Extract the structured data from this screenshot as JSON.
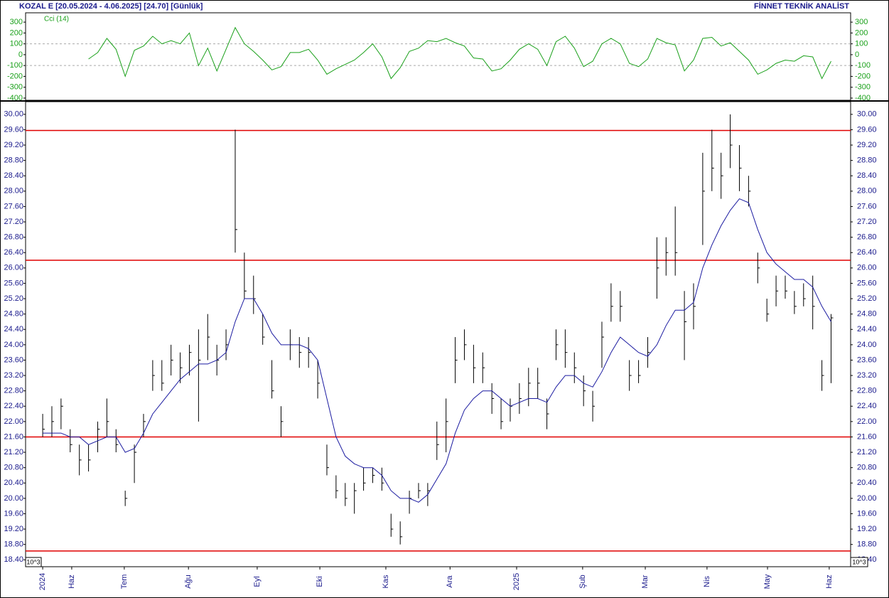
{
  "header": {
    "title": "KOZAL E  [20.05.2024 - 4.06.2025]  [24.70]  [Günlük]",
    "brand": "FİNNET TEKNİK ANALİST"
  },
  "chart_data": [
    {
      "type": "line",
      "title": "Cci (14)",
      "color": "#1aa01a",
      "x": [
        0,
        3,
        6,
        9,
        12,
        15,
        18,
        21,
        24,
        27,
        30,
        33,
        36,
        39,
        42,
        45,
        48,
        51,
        54,
        57,
        60,
        63,
        66,
        69,
        72,
        75,
        78,
        81,
        84,
        87,
        90,
        93,
        96,
        99,
        102,
        105,
        108,
        111,
        114,
        117,
        120,
        123,
        126,
        129,
        132,
        135,
        138,
        141,
        144,
        147,
        150,
        153,
        156,
        159,
        162,
        165,
        168,
        171,
        174,
        177,
        180,
        183,
        186,
        189,
        192,
        195,
        198,
        201,
        204,
        207,
        210,
        213,
        216,
        219,
        222,
        225,
        228,
        231,
        234,
        237,
        240,
        243,
        246,
        249,
        252,
        255,
        258
      ],
      "values": [
        null,
        null,
        null,
        null,
        null,
        -40,
        20,
        150,
        50,
        -200,
        40,
        80,
        170,
        100,
        130,
        100,
        200,
        -100,
        60,
        -150,
        50,
        250,
        100,
        30,
        -50,
        -140,
        -110,
        20,
        20,
        50,
        -50,
        -180,
        -130,
        -90,
        -50,
        20,
        100,
        -20,
        -220,
        -120,
        30,
        60,
        130,
        120,
        150,
        110,
        80,
        -30,
        -40,
        -150,
        -130,
        -50,
        50,
        100,
        50,
        -100,
        120,
        170,
        60,
        -110,
        -60,
        100,
        150,
        100,
        -80,
        -110,
        -40,
        150,
        110,
        90,
        -150,
        -50,
        150,
        160,
        80,
        110,
        30,
        -50,
        -180,
        -140,
        -80,
        -50,
        -60,
        -10,
        -20,
        -220,
        -60
      ],
      "levels": [
        100,
        -100
      ],
      "xlim": [
        -5.6,
        264.4
      ],
      "ylim": [
        -420,
        386
      ],
      "yticks": [
        300,
        200,
        100,
        0,
        -100,
        -200,
        -300,
        -400
      ]
    },
    {
      "type": "ohlc",
      "color": "#000000",
      "axis_note": "10^3",
      "x": [
        0,
        3,
        6,
        9,
        12,
        15,
        18,
        21,
        24,
        27,
        30,
        33,
        36,
        39,
        42,
        45,
        48,
        51,
        54,
        57,
        60,
        63,
        66,
        69,
        72,
        75,
        78,
        81,
        84,
        87,
        90,
        93,
        96,
        99,
        102,
        105,
        108,
        111,
        114,
        117,
        120,
        123,
        126,
        129,
        132,
        135,
        138,
        141,
        144,
        147,
        150,
        153,
        156,
        159,
        162,
        165,
        168,
        171,
        174,
        177,
        180,
        183,
        186,
        189,
        192,
        195,
        198,
        201,
        204,
        207,
        210,
        213,
        216,
        219,
        222,
        225,
        228,
        231,
        234,
        237,
        240,
        243,
        246,
        249,
        252,
        255,
        258
      ],
      "high": [
        22.2,
        22.4,
        22.6,
        21.8,
        21.4,
        21.4,
        22.0,
        22.6,
        21.8,
        20.2,
        21.4,
        22.2,
        23.6,
        23.6,
        24.0,
        23.8,
        24.0,
        24.4,
        24.8,
        24.0,
        24.4,
        29.6,
        26.4,
        25.8,
        24.8,
        23.6,
        22.4,
        24.4,
        24.2,
        24.2,
        23.6,
        21.4,
        20.6,
        20.4,
        20.4,
        20.8,
        20.8,
        20.8,
        19.6,
        19.4,
        20.2,
        20.4,
        20.4,
        22.0,
        22.6,
        24.2,
        24.4,
        24.0,
        23.8,
        23.0,
        22.6,
        22.6,
        23.0,
        23.4,
        23.4,
        22.6,
        24.4,
        24.4,
        23.8,
        23.2,
        22.8,
        24.6,
        25.6,
        25.4,
        23.6,
        23.6,
        24.2,
        26.8,
        26.8,
        27.6,
        25.4,
        25.6,
        29.0,
        29.6,
        29.0,
        30.0,
        29.2,
        28.4,
        26.4,
        25.2,
        25.8,
        25.8,
        25.4,
        25.6,
        25.8,
        23.6,
        24.8
      ],
      "low": [
        21.6,
        21.6,
        21.8,
        21.2,
        20.6,
        20.7,
        21.2,
        21.6,
        21.2,
        19.8,
        20.4,
        21.6,
        22.8,
        22.8,
        23.2,
        23.0,
        23.2,
        22.0,
        23.6,
        23.2,
        23.6,
        26.4,
        25.2,
        24.8,
        24.0,
        22.6,
        21.6,
        23.6,
        23.4,
        23.4,
        22.6,
        20.6,
        20.0,
        19.8,
        19.6,
        20.2,
        20.4,
        20.2,
        19.0,
        18.8,
        19.6,
        20.0,
        19.8,
        21.0,
        21.2,
        23.0,
        23.6,
        23.0,
        23.0,
        22.2,
        21.8,
        22.0,
        22.2,
        22.4,
        22.6,
        21.8,
        23.6,
        23.4,
        23.0,
        22.4,
        22.0,
        23.4,
        24.6,
        24.6,
        22.8,
        23.0,
        23.4,
        25.2,
        25.8,
        25.8,
        23.6,
        24.4,
        26.6,
        28.0,
        27.8,
        28.6,
        28.0,
        27.6,
        25.6,
        24.6,
        25.0,
        25.2,
        24.8,
        25.0,
        24.4,
        22.8,
        23.0
      ],
      "close": [
        21.8,
        22.0,
        22.4,
        21.4,
        21.0,
        21.0,
        21.8,
        22.0,
        21.4,
        20.0,
        21.2,
        22.0,
        23.2,
        23.0,
        23.6,
        23.4,
        23.8,
        23.6,
        24.2,
        23.6,
        24.0,
        27.0,
        25.4,
        25.2,
        24.2,
        22.8,
        22.0,
        24.0,
        23.8,
        23.8,
        23.0,
        20.8,
        20.2,
        20.0,
        20.2,
        20.4,
        20.6,
        20.4,
        19.2,
        19.0,
        20.0,
        20.2,
        20.2,
        21.4,
        22.0,
        23.6,
        24.0,
        23.4,
        23.4,
        22.6,
        22.0,
        22.4,
        22.6,
        23.0,
        23.0,
        22.2,
        24.0,
        23.8,
        23.4,
        22.8,
        22.4,
        24.2,
        25.0,
        25.0,
        23.2,
        23.2,
        23.8,
        26.0,
        26.4,
        26.4,
        24.6,
        25.0,
        28.0,
        28.6,
        28.4,
        29.2,
        28.6,
        28.0,
        26.0,
        24.8,
        25.4,
        25.4,
        25.0,
        25.2,
        25.0,
        23.2,
        24.7
      ],
      "ma": {
        "color": "#1a1aa0",
        "values": [
          21.7,
          21.7,
          21.7,
          21.6,
          21.6,
          21.4,
          21.5,
          21.6,
          21.6,
          21.2,
          21.3,
          21.7,
          22.2,
          22.5,
          22.8,
          23.1,
          23.3,
          23.5,
          23.5,
          23.6,
          23.8,
          24.6,
          25.2,
          25.2,
          24.8,
          24.3,
          24.0,
          24.0,
          24.0,
          23.9,
          23.6,
          22.6,
          21.6,
          21.1,
          20.9,
          20.8,
          20.8,
          20.6,
          20.2,
          20.0,
          20.0,
          19.9,
          20.1,
          20.5,
          20.9,
          21.7,
          22.3,
          22.6,
          22.8,
          22.8,
          22.6,
          22.4,
          22.5,
          22.6,
          22.6,
          22.5,
          22.9,
          23.2,
          23.2,
          23.0,
          22.9,
          23.3,
          23.8,
          24.2,
          24.0,
          23.8,
          23.7,
          24.0,
          24.5,
          24.9,
          24.9,
          25.1,
          26.0,
          26.6,
          27.1,
          27.5,
          27.8,
          27.7,
          27.0,
          26.4,
          26.1,
          25.9,
          25.7,
          25.7,
          25.5,
          25.0,
          24.6
        ]
      },
      "hlines": {
        "color": "#e00000",
        "values": [
          29.58,
          26.2,
          21.6,
          18.63
        ]
      },
      "xlim": [
        -5.6,
        264.4
      ],
      "ylim": [
        18.22,
        30.33
      ],
      "xticks": [
        {
          "value": 0,
          "label": "2024"
        },
        {
          "value": 9.5,
          "label": "Haz"
        },
        {
          "value": 26.7,
          "label": "Tem"
        },
        {
          "value": 47.7,
          "label": "Ağu"
        },
        {
          "value": 70.2,
          "label": "Eyl"
        },
        {
          "value": 90.7,
          "label": "Eki"
        },
        {
          "value": 112.3,
          "label": "Kas"
        },
        {
          "value": 133.3,
          "label": "Ara"
        },
        {
          "value": 155.1,
          "label": "2025"
        },
        {
          "value": 176.7,
          "label": "Şub"
        },
        {
          "value": 197.2,
          "label": "Mar"
        },
        {
          "value": 217.4,
          "label": "Nis"
        },
        {
          "value": 237.2,
          "label": "May"
        },
        {
          "value": 257.4,
          "label": "Haz"
        }
      ],
      "yticks": [
        {
          "value": 18.4,
          "label": "18.40"
        },
        {
          "value": 18.8,
          "label": "18.80"
        },
        {
          "value": 19.2,
          "label": "19.20"
        },
        {
          "value": 19.6,
          "label": "19.60"
        },
        {
          "value": 20,
          "label": "20.00"
        },
        {
          "value": 20.4,
          "label": "20.40"
        },
        {
          "value": 20.8,
          "label": "20.80"
        },
        {
          "value": 21.2,
          "label": "21.20"
        },
        {
          "value": 21.6,
          "label": "21.60"
        },
        {
          "value": 22,
          "label": "22.00"
        },
        {
          "value": 22.4,
          "label": "22.40"
        },
        {
          "value": 22.8,
          "label": "22.80"
        },
        {
          "value": 23.2,
          "label": "23.20"
        },
        {
          "value": 23.6,
          "label": "23.60"
        },
        {
          "value": 24,
          "label": "24.00"
        },
        {
          "value": 24.4,
          "label": "24.40"
        },
        {
          "value": 24.8,
          "label": "24.80"
        },
        {
          "value": 25.2,
          "label": "25.20"
        },
        {
          "value": 25.6,
          "label": "25.60"
        },
        {
          "value": 26,
          "label": "26.00"
        },
        {
          "value": 26.4,
          "label": "26.40"
        },
        {
          "value": 26.8,
          "label": "26.80"
        },
        {
          "value": 27.2,
          "label": "27.20"
        },
        {
          "value": 27.6,
          "label": "27.60"
        },
        {
          "value": 28,
          "label": "28.00"
        },
        {
          "value": 28.4,
          "label": "28.40"
        },
        {
          "value": 28.8,
          "label": "28.80"
        },
        {
          "value": 29.2,
          "label": "29.20"
        },
        {
          "value": 29.6,
          "label": "29.60"
        },
        {
          "value": 30,
          "label": "30.00"
        }
      ]
    }
  ]
}
